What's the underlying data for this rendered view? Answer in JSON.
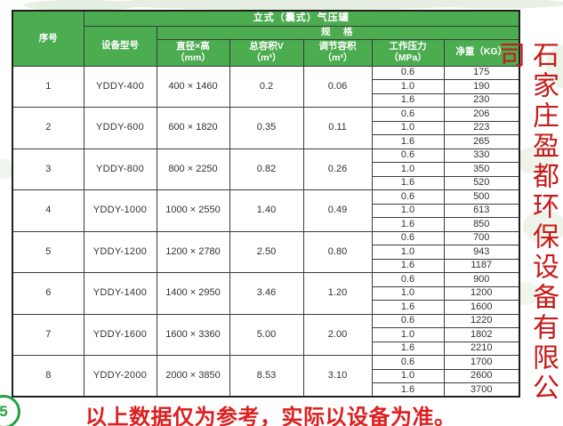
{
  "colors": {
    "header_green": "#4cac50",
    "note_red": "#dd1f1f",
    "company_red": "#c81818",
    "border_dark": "#1f1f1f"
  },
  "table": {
    "title": "立式（囊式）气压罐",
    "spec_label": "规　格",
    "serial_label": "序号",
    "model_label": "设备型号",
    "spec_columns": {
      "size": "直径×高\n（mm）",
      "total_volume": "总容积V\n（m³）",
      "adjust_volume": "调节容积\n（m³）",
      "pressure": "工作压力\n（MPa）",
      "weight": "净重（KG）"
    },
    "rows": [
      {
        "serial": "1",
        "model": "YDDY-400",
        "size": "400 × 1460",
        "total_volume": "0.2",
        "adjust_volume": "0.06",
        "pressures": [
          "0.6",
          "1.0",
          "1.6"
        ],
        "weights": [
          "175",
          "190",
          "230"
        ]
      },
      {
        "serial": "2",
        "model": "YDDY-600",
        "size": "600 × 1820",
        "total_volume": "0.35",
        "adjust_volume": "0.11",
        "pressures": [
          "0.6",
          "1.0",
          "1.6"
        ],
        "weights": [
          "206",
          "223",
          "265"
        ]
      },
      {
        "serial": "3",
        "model": "YDDY-800",
        "size": "800 × 2250",
        "total_volume": "0.82",
        "adjust_volume": "0.26",
        "pressures": [
          "0.6",
          "1.0",
          "1.6"
        ],
        "weights": [
          "330",
          "350",
          "520"
        ]
      },
      {
        "serial": "4",
        "model": "YDDY-1000",
        "size": "1000 × 2550",
        "total_volume": "1.40",
        "adjust_volume": "0.49",
        "pressures": [
          "0.6",
          "1.0",
          "1.6"
        ],
        "weights": [
          "500",
          "613",
          "850"
        ]
      },
      {
        "serial": "5",
        "model": "YDDY-1200",
        "size": "1200 × 2780",
        "total_volume": "2.50",
        "adjust_volume": "0.80",
        "pressures": [
          "0.6",
          "1.0",
          "1.6"
        ],
        "weights": [
          "700",
          "943",
          "1187"
        ]
      },
      {
        "serial": "6",
        "model": "YDDY-1400",
        "size": "1400 × 2950",
        "total_volume": "3.46",
        "adjust_volume": "1.20",
        "pressures": [
          "0.6",
          "1.0",
          "1.6"
        ],
        "weights": [
          "900",
          "1200",
          "1600"
        ]
      },
      {
        "serial": "7",
        "model": "YDDY-1600",
        "size": "1600 × 3360",
        "total_volume": "5.00",
        "adjust_volume": "2.00",
        "pressures": [
          "0.6",
          "1.0",
          "1.6"
        ],
        "weights": [
          "1220",
          "1802",
          "2210"
        ]
      },
      {
        "serial": "8",
        "model": "YDDY-2000",
        "size": "2000 × 3850",
        "total_volume": "8.53",
        "adjust_volume": "3.10",
        "pressures": [
          "0.6",
          "1.0",
          "1.6"
        ],
        "weights": [
          "1700",
          "2600",
          "3700"
        ]
      }
    ]
  },
  "footer": {
    "note": "以上数据仅为参考，实际以设备为准。"
  },
  "sidebar": {
    "company_name": "石家庄盈都环保设备有限公司"
  },
  "badge": {
    "label": "5"
  }
}
